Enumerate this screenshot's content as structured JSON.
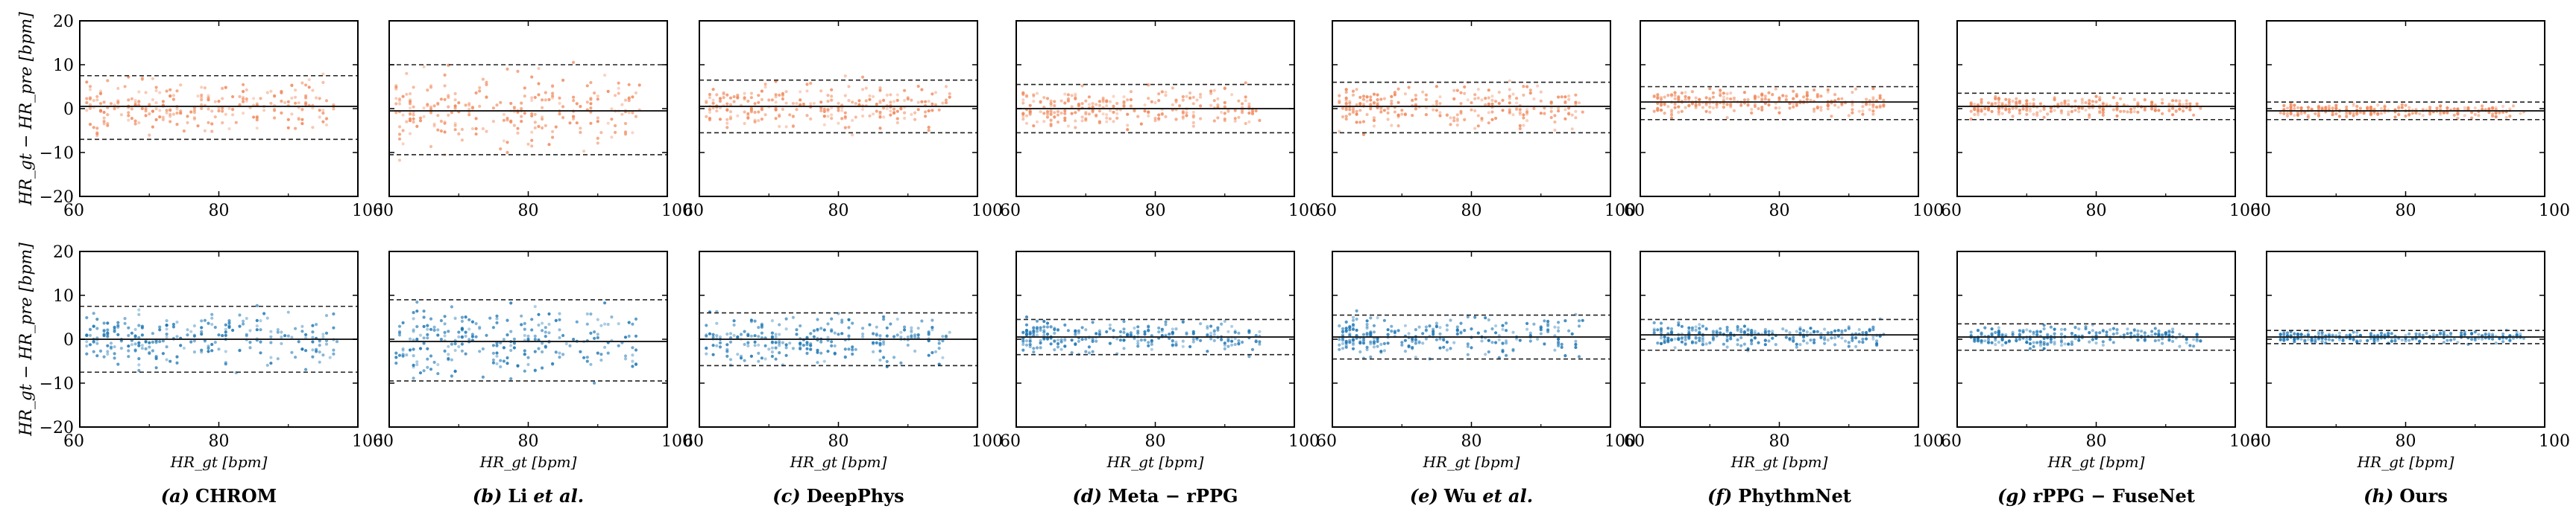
{
  "figure": {
    "y_axis_label": "HR_gt − HR_pre  [bpm]",
    "x_axis_label": "HR_gt  [bpm]",
    "colors": {
      "top_points": "#f08a5d",
      "bottom_points": "#1f77b4",
      "lines": "#222222"
    },
    "rows": [
      {
        "y_tick_labels": [
          "20",
          "10",
          "0",
          "−10",
          "−20"
        ],
        "x_tick_labels": [
          "60",
          "80",
          "100"
        ]
      },
      {
        "y_tick_labels": [
          "20",
          "10",
          "0",
          "−10",
          "−20"
        ],
        "x_tick_labels": [
          "60",
          "80",
          "100"
        ]
      }
    ],
    "panels": [
      {
        "caption_prefix": "(a)",
        "caption_name": "CHROM",
        "caption_suffix": ""
      },
      {
        "caption_prefix": "(b)",
        "caption_name": "Li",
        "caption_suffix": "et al."
      },
      {
        "caption_prefix": "(c)",
        "caption_name": "DeepPhys",
        "caption_suffix": ""
      },
      {
        "caption_prefix": "(d)",
        "caption_name": "Meta − rPPG",
        "caption_suffix": ""
      },
      {
        "caption_prefix": "(e)",
        "caption_name": "Wu",
        "caption_suffix": "et al."
      },
      {
        "caption_prefix": "(f)",
        "caption_name": "PhythmNet",
        "caption_suffix": ""
      },
      {
        "caption_prefix": "(g)",
        "caption_name": "rPPG − FuseNet",
        "caption_suffix": ""
      },
      {
        "caption_prefix": "(h)",
        "caption_name": "Ours",
        "caption_suffix": ""
      }
    ]
  },
  "chart_data": [
    {
      "type": "scatter",
      "row": 1,
      "panel": "CHROM",
      "xlim": [
        60,
        100
      ],
      "ylim": [
        -20,
        20
      ],
      "mean_line": 0.5,
      "upper_limit": 7.5,
      "lower_limit": -7,
      "scatter_spread": 7,
      "x_range": [
        61,
        97
      ]
    },
    {
      "type": "scatter",
      "row": 1,
      "panel": "Li et al.",
      "xlim": [
        60,
        100
      ],
      "ylim": [
        -20,
        20
      ],
      "mean_line": -0.5,
      "upper_limit": 10,
      "lower_limit": -10.5,
      "scatter_spread": 10,
      "x_range": [
        61,
        96
      ]
    },
    {
      "type": "scatter",
      "row": 1,
      "panel": "DeepPhys",
      "xlim": [
        60,
        100
      ],
      "ylim": [
        -20,
        20
      ],
      "mean_line": 0.5,
      "upper_limit": 6.5,
      "lower_limit": -5.5,
      "scatter_spread": 6,
      "x_range": [
        61,
        96
      ]
    },
    {
      "type": "scatter",
      "row": 1,
      "panel": "Meta − rPPG",
      "xlim": [
        60,
        100
      ],
      "ylim": [
        -20,
        20
      ],
      "mean_line": 0,
      "upper_limit": 5.5,
      "lower_limit": -5.5,
      "scatter_spread": 5,
      "x_range": [
        61,
        95
      ]
    },
    {
      "type": "scatter",
      "row": 1,
      "panel": "Wu et al.",
      "xlim": [
        60,
        100
      ],
      "ylim": [
        -20,
        20
      ],
      "mean_line": 0.5,
      "upper_limit": 6,
      "lower_limit": -5.5,
      "scatter_spread": 5.5,
      "x_range": [
        61,
        96
      ]
    },
    {
      "type": "scatter",
      "row": 1,
      "panel": "PhythmNet",
      "xlim": [
        60,
        100
      ],
      "ylim": [
        -20,
        20
      ],
      "mean_line": 1.5,
      "upper_limit": 5,
      "lower_limit": -2.5,
      "scatter_spread": 3,
      "x_range": [
        62,
        95
      ]
    },
    {
      "type": "scatter",
      "row": 1,
      "panel": "rPPG − FuseNet",
      "xlim": [
        60,
        100
      ],
      "ylim": [
        -20,
        20
      ],
      "mean_line": 0.5,
      "upper_limit": 3.5,
      "lower_limit": -2.5,
      "scatter_spread": 2.5,
      "x_range": [
        62,
        95
      ]
    },
    {
      "type": "scatter",
      "row": 1,
      "panel": "Ours",
      "xlim": [
        60,
        100
      ],
      "ylim": [
        -20,
        20
      ],
      "mean_line": -0.5,
      "upper_limit": 1.5,
      "lower_limit": -2.5,
      "scatter_spread": 1.5,
      "x_range": [
        62,
        97
      ]
    },
    {
      "type": "scatter",
      "row": 2,
      "panel": "CHROM",
      "xlim": [
        60,
        100
      ],
      "ylim": [
        -20,
        20
      ],
      "mean_line": 0,
      "upper_limit": 7.5,
      "lower_limit": -7.5,
      "scatter_spread": 7,
      "x_range": [
        61,
        97
      ]
    },
    {
      "type": "scatter",
      "row": 2,
      "panel": "Li et al.",
      "xlim": [
        60,
        100
      ],
      "ylim": [
        -20,
        20
      ],
      "mean_line": -0.5,
      "upper_limit": 9,
      "lower_limit": -9.5,
      "scatter_spread": 9,
      "x_range": [
        61,
        96
      ]
    },
    {
      "type": "scatter",
      "row": 2,
      "panel": "DeepPhys",
      "xlim": [
        60,
        100
      ],
      "ylim": [
        -20,
        20
      ],
      "mean_line": 0,
      "upper_limit": 6,
      "lower_limit": -6,
      "scatter_spread": 5.5,
      "x_range": [
        61,
        96
      ]
    },
    {
      "type": "scatter",
      "row": 2,
      "panel": "Meta − rPPG",
      "xlim": [
        60,
        100
      ],
      "ylim": [
        -20,
        20
      ],
      "mean_line": 0.5,
      "upper_limit": 4.5,
      "lower_limit": -3.5,
      "scatter_spread": 4,
      "x_range": [
        61,
        95
      ]
    },
    {
      "type": "scatter",
      "row": 2,
      "panel": "Wu et al.",
      "xlim": [
        60,
        100
      ],
      "ylim": [
        -20,
        20
      ],
      "mean_line": 0.5,
      "upper_limit": 5.5,
      "lower_limit": -4.5,
      "scatter_spread": 5,
      "x_range": [
        61,
        96
      ]
    },
    {
      "type": "scatter",
      "row": 2,
      "panel": "PhythmNet",
      "xlim": [
        60,
        100
      ],
      "ylim": [
        -20,
        20
      ],
      "mean_line": 1,
      "upper_limit": 4.5,
      "lower_limit": -2.5,
      "scatter_spread": 3,
      "x_range": [
        62,
        95
      ]
    },
    {
      "type": "scatter",
      "row": 2,
      "panel": "rPPG − FuseNet",
      "xlim": [
        60,
        100
      ],
      "ylim": [
        -20,
        20
      ],
      "mean_line": 0.5,
      "upper_limit": 3.5,
      "lower_limit": -2.5,
      "scatter_spread": 2.5,
      "x_range": [
        62,
        95
      ]
    },
    {
      "type": "scatter",
      "row": 2,
      "panel": "Ours",
      "xlim": [
        60,
        100
      ],
      "ylim": [
        -20,
        20
      ],
      "mean_line": 0.5,
      "upper_limit": 2,
      "lower_limit": -1,
      "scatter_spread": 1.5,
      "x_range": [
        62,
        97
      ]
    }
  ]
}
